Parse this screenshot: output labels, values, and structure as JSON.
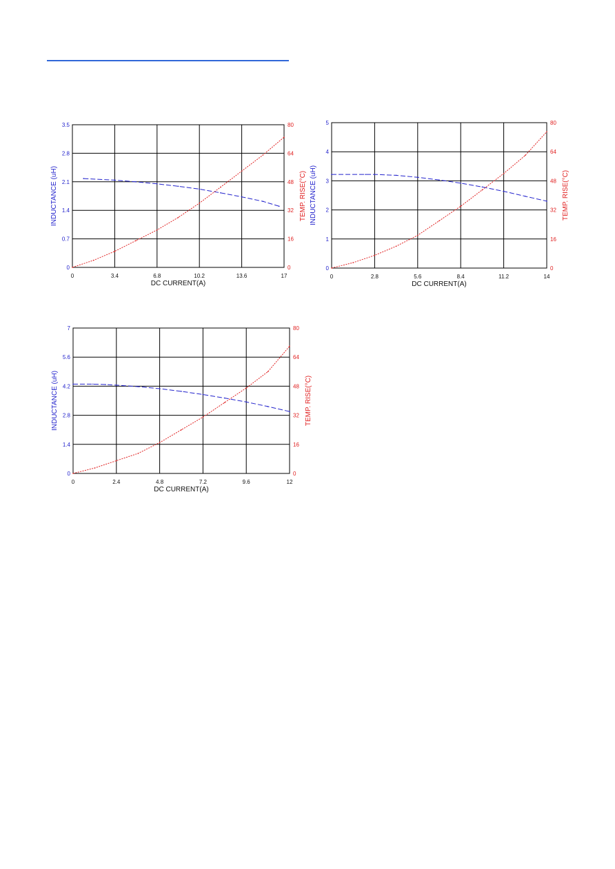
{
  "chart_data": [
    {
      "type": "line",
      "xlabel": "DC CURRENT(A)",
      "ylabel_left": "INDUCTANCE (uH)",
      "ylabel_right": "TEMP. RISE(°C)",
      "x_ticks": [
        "0",
        "3.4",
        "6.8",
        "10.2",
        "13.6",
        "17"
      ],
      "y_left_ticks": [
        "0",
        "0.7",
        "1.4",
        "2.1",
        "2.8",
        "3.5"
      ],
      "y_right_ticks": [
        "0",
        "16",
        "32",
        "48",
        "64",
        "80"
      ],
      "xlim": [
        0,
        17
      ],
      "ylim_left": [
        0,
        3.5
      ],
      "ylim_right": [
        0,
        80
      ],
      "grid": true,
      "series": [
        {
          "name": "INDUCTANCE (uH)",
          "axis": "left",
          "color": "#2222cc",
          "style": "dashed",
          "x": [
            0.9,
            3.4,
            5.1,
            6.8,
            8.5,
            10.2,
            11.9,
            13.6,
            15.3,
            16.6
          ],
          "y": [
            2.18,
            2.14,
            2.1,
            2.05,
            1.99,
            1.92,
            1.83,
            1.73,
            1.62,
            1.5
          ]
        },
        {
          "name": "TEMP. RISE(°C)",
          "axis": "right",
          "color": "#e02020",
          "style": "dotted",
          "x": [
            0,
            1.7,
            3.4,
            5.1,
            6.8,
            8.5,
            10.2,
            11.9,
            13.6,
            15.3,
            17
          ],
          "y": [
            0,
            4,
            9,
            15,
            21,
            28,
            36,
            45,
            54,
            63,
            73
          ]
        }
      ]
    },
    {
      "type": "line",
      "xlabel": "DC CURRENT(A)",
      "ylabel_left": "INDUCTANCE (uH)",
      "ylabel_right": "TEMP. RISE(°C)",
      "x_ticks": [
        "0",
        "2.8",
        "5.6",
        "8.4",
        "11.2",
        "14"
      ],
      "y_left_ticks": [
        "0",
        "1",
        "2",
        "3",
        "4",
        "5"
      ],
      "y_right_ticks": [
        "0",
        "16",
        "32",
        "48",
        "64",
        "80"
      ],
      "xlim": [
        0,
        14
      ],
      "ylim_left": [
        0,
        5
      ],
      "ylim_right": [
        0,
        80
      ],
      "grid": true,
      "series": [
        {
          "name": "INDUCTANCE (uH)",
          "axis": "left",
          "color": "#2222cc",
          "style": "dashed",
          "x": [
            0,
            2.2,
            2.8,
            4.2,
            5.6,
            7.0,
            8.4,
            9.8,
            11.2,
            12.6,
            14
          ],
          "y": [
            3.22,
            3.22,
            3.22,
            3.19,
            3.12,
            3.03,
            2.92,
            2.79,
            2.64,
            2.47,
            2.3
          ]
        },
        {
          "name": "TEMP. RISE(°C)",
          "axis": "right",
          "color": "#e02020",
          "style": "dotted",
          "x": [
            0,
            1.4,
            2.8,
            4.2,
            5.6,
            7.0,
            8.4,
            9.8,
            11.2,
            12.6,
            14
          ],
          "y": [
            0,
            3,
            7,
            12,
            18,
            26,
            34,
            43,
            52,
            62,
            75
          ]
        }
      ]
    },
    {
      "type": "line",
      "xlabel": "DC CURRENT(A)",
      "ylabel_left": "INDUCTANCE (uH)",
      "ylabel_right": "TEMP. RISE(°C)",
      "x_ticks": [
        "0",
        "2.4",
        "4.8",
        "7.2",
        "9.6",
        "12"
      ],
      "y_left_ticks": [
        "0",
        "1.4",
        "2.8",
        "4.2",
        "5.6",
        "7"
      ],
      "y_right_ticks": [
        "0",
        "16",
        "32",
        "48",
        "64",
        "80"
      ],
      "xlim": [
        0,
        12
      ],
      "ylim_left": [
        0,
        7
      ],
      "ylim_right": [
        0,
        80
      ],
      "grid": true,
      "series": [
        {
          "name": "INDUCTANCE (uH)",
          "axis": "left",
          "color": "#2222cc",
          "style": "dashed",
          "x": [
            0,
            1.1,
            1.8,
            2.4,
            3.6,
            4.8,
            6.0,
            7.2,
            8.4,
            9.6,
            10.8,
            12
          ],
          "y": [
            4.3,
            4.3,
            4.28,
            4.25,
            4.18,
            4.08,
            3.95,
            3.8,
            3.63,
            3.44,
            3.22,
            2.98
          ]
        },
        {
          "name": "TEMP. RISE(°C)",
          "axis": "right",
          "color": "#e02020",
          "style": "dotted",
          "x": [
            0,
            1.2,
            2.4,
            3.6,
            4.8,
            6.0,
            7.2,
            8.4,
            9.6,
            10.8,
            12
          ],
          "y": [
            0,
            3,
            7,
            11,
            17,
            24,
            31,
            39,
            47,
            56,
            70
          ]
        }
      ]
    }
  ]
}
